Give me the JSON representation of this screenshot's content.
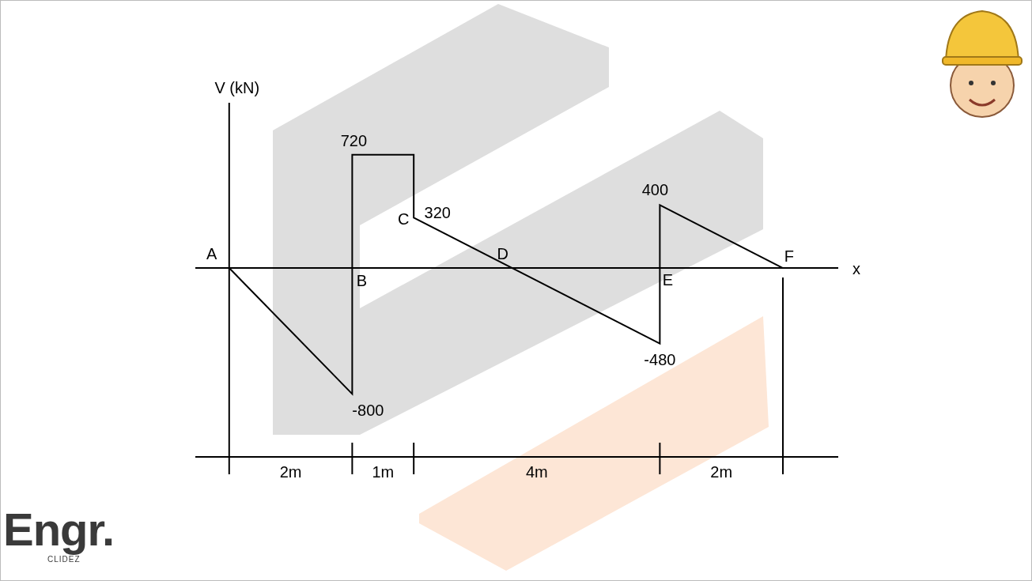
{
  "chart_data": {
    "type": "line",
    "y_label": "V (kN)",
    "x_label": "x",
    "x": [
      0,
      2,
      2,
      3,
      3,
      7,
      7,
      9
    ],
    "values": [
      0,
      -800,
      720,
      720,
      320,
      -480,
      400,
      0
    ],
    "color": "#000000",
    "xlim": [
      -0.55,
      9.9
    ],
    "xticks": [
      0,
      2,
      3,
      7,
      9
    ],
    "ylim": [
      -1200,
      1050
    ],
    "yticks": [
      0
    ],
    "grid": false,
    "tick_labels": false,
    "annotations": [
      {
        "text": "A",
        "x": 0,
        "y": 0
      },
      {
        "text": "B",
        "x": 2,
        "y": 0
      },
      {
        "text": "C",
        "x": 3,
        "y": 320
      },
      {
        "text": "320",
        "x": 3,
        "y": 320
      },
      {
        "text": "D",
        "x": 4.6,
        "y": 0
      },
      {
        "text": "E",
        "x": 7,
        "y": 0
      },
      {
        "text": "F",
        "x": 9,
        "y": 0
      },
      {
        "text": "720",
        "x": 2,
        "y": 720
      },
      {
        "text": "-800",
        "x": 2,
        "y": -800
      },
      {
        "text": "400",
        "x": 7,
        "y": 400
      },
      {
        "text": "-480",
        "x": 7,
        "y": -480
      }
    ],
    "dimensions": [
      {
        "from": 0,
        "to": 2,
        "label": "2m"
      },
      {
        "from": 2,
        "to": 3,
        "label": "1m"
      },
      {
        "from": 3,
        "to": 7,
        "label": "4m"
      },
      {
        "from": 7,
        "to": 9,
        "label": "2m"
      }
    ]
  },
  "logo": {
    "text": "Engr.",
    "subtext": "CLIDEZ"
  }
}
